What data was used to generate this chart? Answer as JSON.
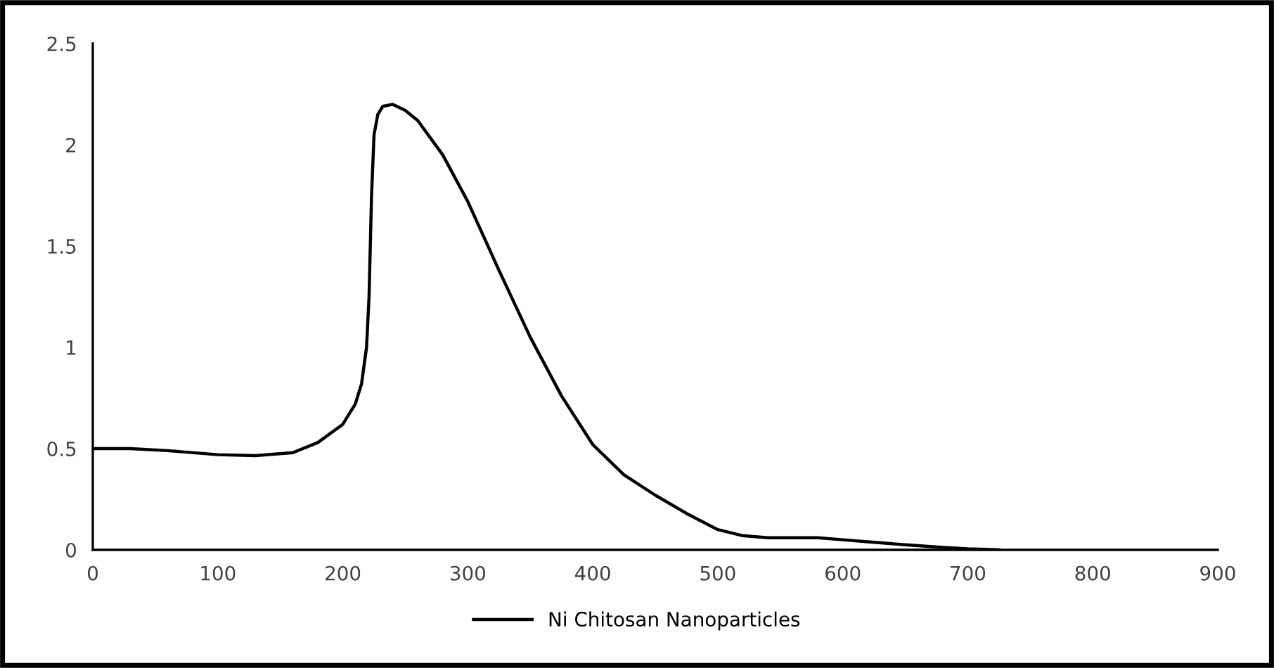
{
  "chart_data": {
    "type": "line",
    "xlim": [
      0,
      900
    ],
    "ylim": [
      0,
      2.5
    ],
    "xticks": [
      0,
      100,
      200,
      300,
      400,
      500,
      600,
      700,
      800,
      900
    ],
    "yticks": [
      0,
      0.5,
      1,
      1.5,
      2,
      2.5
    ],
    "grid": false,
    "legend": "bottom",
    "marker": "none",
    "line_style": "solid",
    "series": [
      {
        "name": "Ni Chitosan Nanoparticles",
        "color": "#000000",
        "x": [
          0,
          30,
          60,
          100,
          130,
          160,
          180,
          200,
          210,
          215,
          219,
          221,
          222,
          223,
          225,
          228,
          232,
          240,
          250,
          260,
          280,
          300,
          325,
          350,
          375,
          400,
          425,
          450,
          475,
          500,
          520,
          540,
          580,
          600,
          620,
          650,
          680,
          700,
          725
        ],
        "values": [
          0.5,
          0.5,
          0.49,
          0.47,
          0.465,
          0.48,
          0.53,
          0.62,
          0.72,
          0.82,
          1.0,
          1.25,
          1.5,
          1.75,
          2.05,
          2.15,
          2.19,
          2.2,
          2.17,
          2.12,
          1.95,
          1.72,
          1.38,
          1.05,
          0.76,
          0.52,
          0.37,
          0.27,
          0.18,
          0.1,
          0.07,
          0.06,
          0.06,
          0.05,
          0.04,
          0.025,
          0.012,
          0.005,
          0.0
        ]
      }
    ]
  }
}
